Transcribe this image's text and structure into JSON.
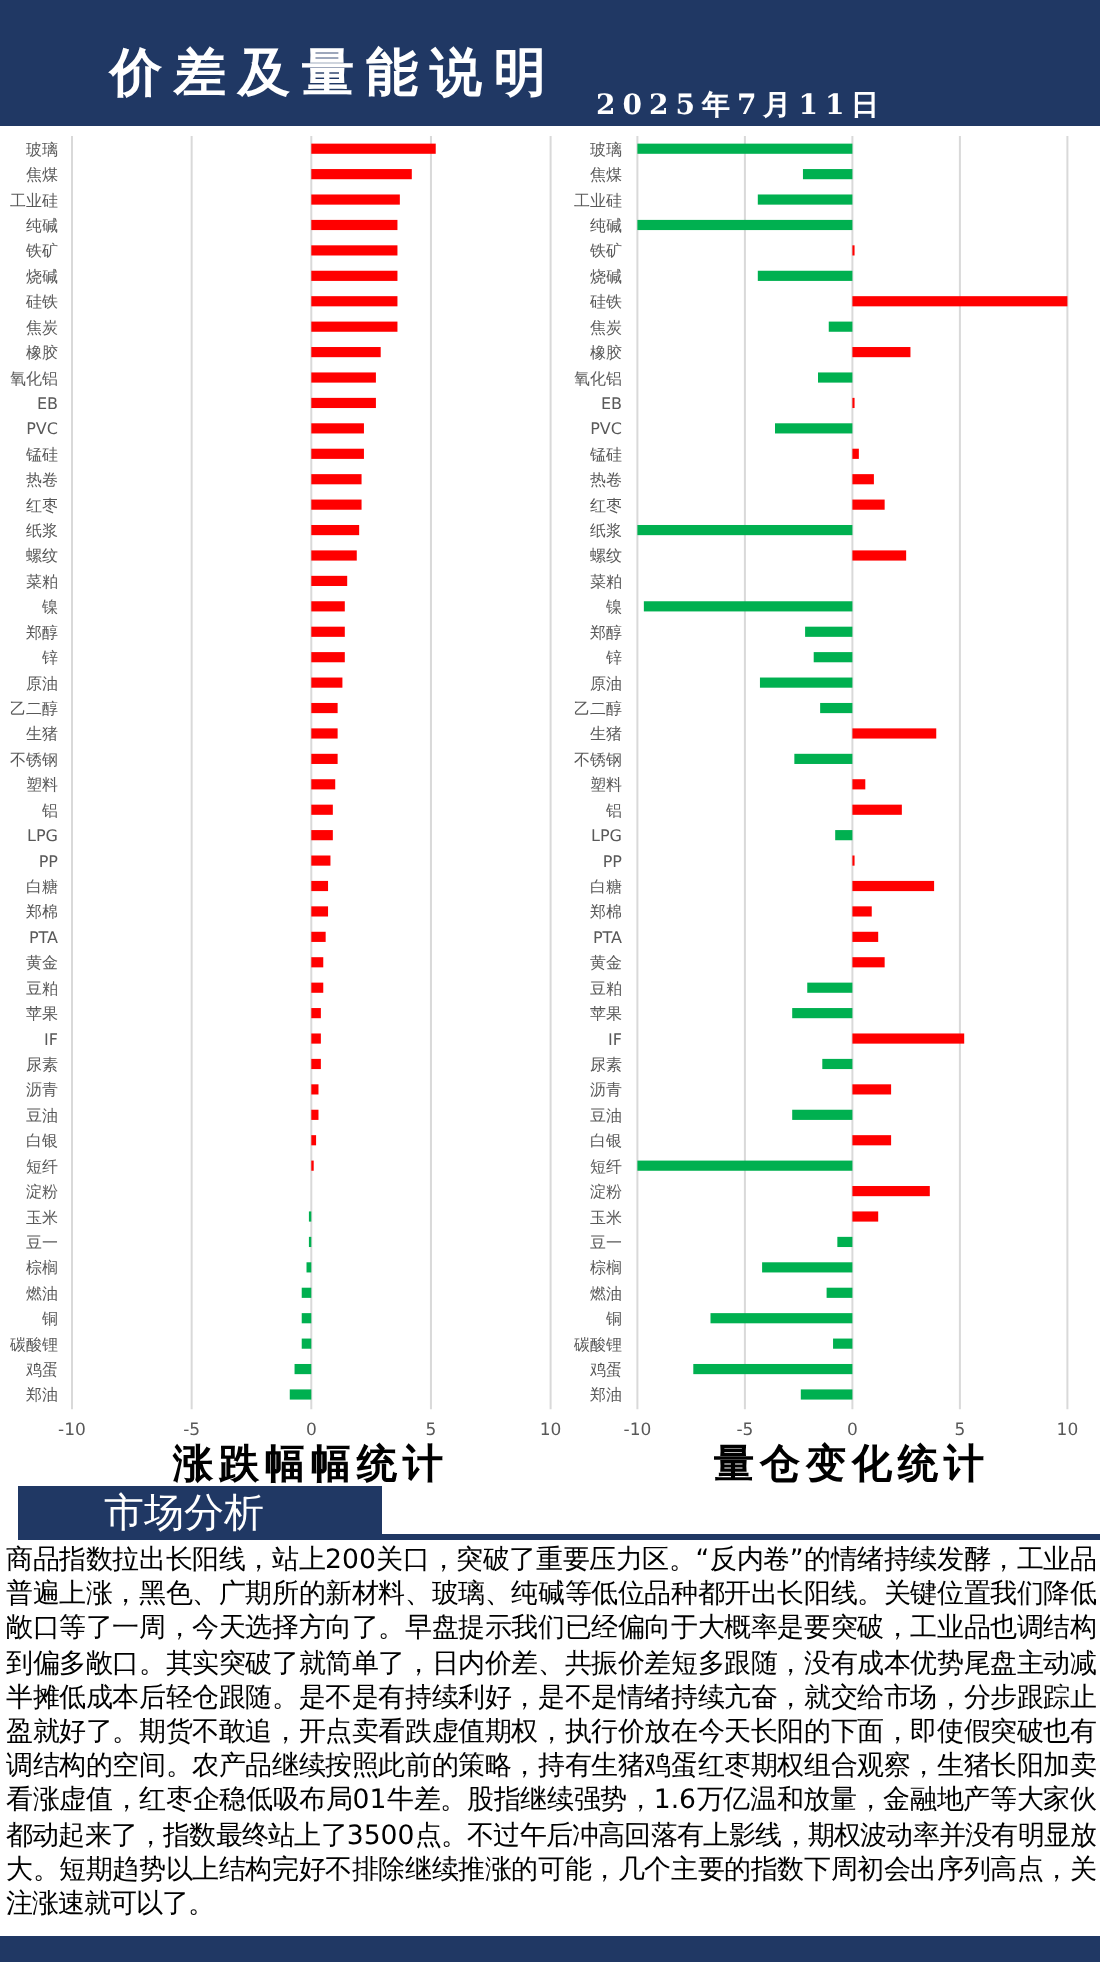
{
  "chart_data": [
    {
      "type": "other",
      "title": "价差及量能说明",
      "subtitle": "2025年7月11日"
    },
    {
      "type": "bar",
      "orientation": "horizontal",
      "title": "涨跌幅幅统计",
      "categories": [
        "玻璃",
        "焦煤",
        "工业硅",
        "纯碱",
        "铁矿",
        "烧碱",
        "硅铁",
        "焦炭",
        "橡胶",
        "氧化铝",
        "EB",
        "PVC",
        "锰硅",
        "热卷",
        "红枣",
        "纸浆",
        "螺纹",
        "菜粕",
        "镍",
        "郑醇",
        "锌",
        "原油",
        "乙二醇",
        "生猪",
        "不锈钢",
        "塑料",
        "铝",
        "LPG",
        "PP",
        "白糖",
        "郑棉",
        "PTA",
        "黄金",
        "豆粕",
        "苹果",
        "IF",
        "尿素",
        "沥青",
        "豆油",
        "白银",
        "短纤",
        "淀粉",
        "玉米",
        "豆一",
        "棕榈",
        "燃油",
        "铜",
        "碳酸锂",
        "鸡蛋",
        "郑油"
      ],
      "values": [
        5.2,
        4.2,
        3.7,
        3.6,
        3.6,
        3.6,
        3.6,
        3.6,
        2.9,
        2.7,
        2.7,
        2.2,
        2.2,
        2.1,
        2.1,
        2.0,
        1.9,
        1.5,
        1.4,
        1.4,
        1.4,
        1.3,
        1.1,
        1.1,
        1.1,
        1.0,
        0.9,
        0.9,
        0.8,
        0.7,
        0.7,
        0.6,
        0.5,
        0.5,
        0.4,
        0.4,
        0.4,
        0.3,
        0.3,
        0.2,
        0.1,
        0,
        -0.1,
        -0.1,
        -0.2,
        -0.4,
        -0.4,
        -0.4,
        -0.7,
        -0.9
      ],
      "colors": [
        "#ff0000",
        "#ff0000",
        "#ff0000",
        "#ff0000",
        "#ff0000",
        "#ff0000",
        "#ff0000",
        "#ff0000",
        "#ff0000",
        "#ff0000",
        "#ff0000",
        "#ff0000",
        "#ff0000",
        "#ff0000",
        "#ff0000",
        "#ff0000",
        "#ff0000",
        "#ff0000",
        "#ff0000",
        "#ff0000",
        "#ff0000",
        "#ff0000",
        "#ff0000",
        "#ff0000",
        "#ff0000",
        "#ff0000",
        "#ff0000",
        "#ff0000",
        "#ff0000",
        "#ff0000",
        "#ff0000",
        "#ff0000",
        "#ff0000",
        "#ff0000",
        "#ff0000",
        "#ff0000",
        "#ff0000",
        "#ff0000",
        "#ff0000",
        "#ff0000",
        "#ff0000",
        "#ff0000",
        "#00b050",
        "#00b050",
        "#00b050",
        "#00b050",
        "#00b050",
        "#00b050",
        "#00b050",
        "#00b050"
      ],
      "xlim": [
        -10,
        10
      ],
      "xticks": [
        -10,
        -5,
        0,
        5,
        10
      ],
      "grid": "x"
    },
    {
      "type": "bar",
      "orientation": "horizontal",
      "title": "量仓变化统计",
      "categories": [
        "玻璃",
        "焦煤",
        "工业硅",
        "纯碱",
        "铁矿",
        "烧碱",
        "硅铁",
        "焦炭",
        "橡胶",
        "氧化铝",
        "EB",
        "PVC",
        "锰硅",
        "热卷",
        "红枣",
        "纸浆",
        "螺纹",
        "菜粕",
        "镍",
        "郑醇",
        "锌",
        "原油",
        "乙二醇",
        "生猪",
        "不锈钢",
        "塑料",
        "铝",
        "LPG",
        "PP",
        "白糖",
        "郑棉",
        "PTA",
        "黄金",
        "豆粕",
        "苹果",
        "IF",
        "尿素",
        "沥青",
        "豆油",
        "白银",
        "短纤",
        "淀粉",
        "玉米",
        "豆一",
        "棕榈",
        "燃油",
        "铜",
        "碳酸锂",
        "鸡蛋",
        "郑油"
      ],
      "values": [
        -10,
        -2.3,
        -4.4,
        -10,
        0.1,
        -4.4,
        10,
        -1.1,
        2.7,
        -1.6,
        0.1,
        -3.6,
        0.3,
        1.0,
        1.5,
        -10,
        2.5,
        0,
        -9.7,
        -2.2,
        -1.8,
        -4.3,
        -1.5,
        3.9,
        -2.7,
        0.6,
        2.3,
        -0.8,
        0.1,
        3.8,
        0.9,
        1.2,
        1.5,
        -2.1,
        -2.8,
        5.2,
        -1.4,
        1.8,
        -2.8,
        1.8,
        -10,
        3.6,
        1.2,
        -0.7,
        -4.2,
        -1.2,
        -6.6,
        -0.9,
        -7.4,
        -2.4
      ],
      "colors": [
        "#00b050",
        "#00b050",
        "#00b050",
        "#00b050",
        "#ff0000",
        "#00b050",
        "#ff0000",
        "#00b050",
        "#ff0000",
        "#00b050",
        "#ff0000",
        "#00b050",
        "#ff0000",
        "#ff0000",
        "#ff0000",
        "#00b050",
        "#ff0000",
        "#ff0000",
        "#00b050",
        "#00b050",
        "#00b050",
        "#00b050",
        "#00b050",
        "#ff0000",
        "#00b050",
        "#ff0000",
        "#ff0000",
        "#00b050",
        "#ff0000",
        "#ff0000",
        "#ff0000",
        "#ff0000",
        "#ff0000",
        "#00b050",
        "#00b050",
        "#ff0000",
        "#00b050",
        "#ff0000",
        "#00b050",
        "#ff0000",
        "#00b050",
        "#ff0000",
        "#ff0000",
        "#00b050",
        "#00b050",
        "#00b050",
        "#00b050",
        "#00b050",
        "#00b050",
        "#00b050"
      ],
      "xlim": [
        -10,
        10
      ],
      "xticks": [
        -10,
        -5,
        0,
        5,
        10
      ],
      "grid": "x"
    },
    {
      "type": "other",
      "title": "市场分析",
      "annotations": [
        "商品指数拉出长阳线，站上200关口，突破了重要压力区。“反内卷”的情绪持续发酵，工业品普遍上涨，黑色、广期所的新材料、玻璃、纯碱等低位品种都开出长阳线。关键位置我们降低敞口等了一周，今天选择方向了。早盘提示我们已经偏向于大概率是要突破，工业品也调结构到偏多敞口。其实突破了就简单了，日内价差、共振价差短多跟随，没有成本优势尾盘主动减半摊低成本后轻仓跟随。是不是有持续利好，是不是情绪持续亢奋，就交给市场，分步跟踪止盈就好了。期货不敢追，开点卖看跌虚值期权，执行价放在今天长阳的下面，即使假突破也有调结构的空间。农产品继续按照此前的策略，持有生猪鸡蛋红枣期权组合观察，生猪长阳加卖看涨虚值，红枣企稳低吸布局01牛差。股指继续强势，1.6万亿温和放量，金融地产等大家伙都动起来了，指数最终站上了3500点。不过午后冲高回落有上影线，期权波动率并没有明显放大。短期趋势以上结构完好不排除继续推涨的可能，几个主要的指数下周初会出序列高点，关注涨速就可以了。"
      ]
    }
  ]
}
